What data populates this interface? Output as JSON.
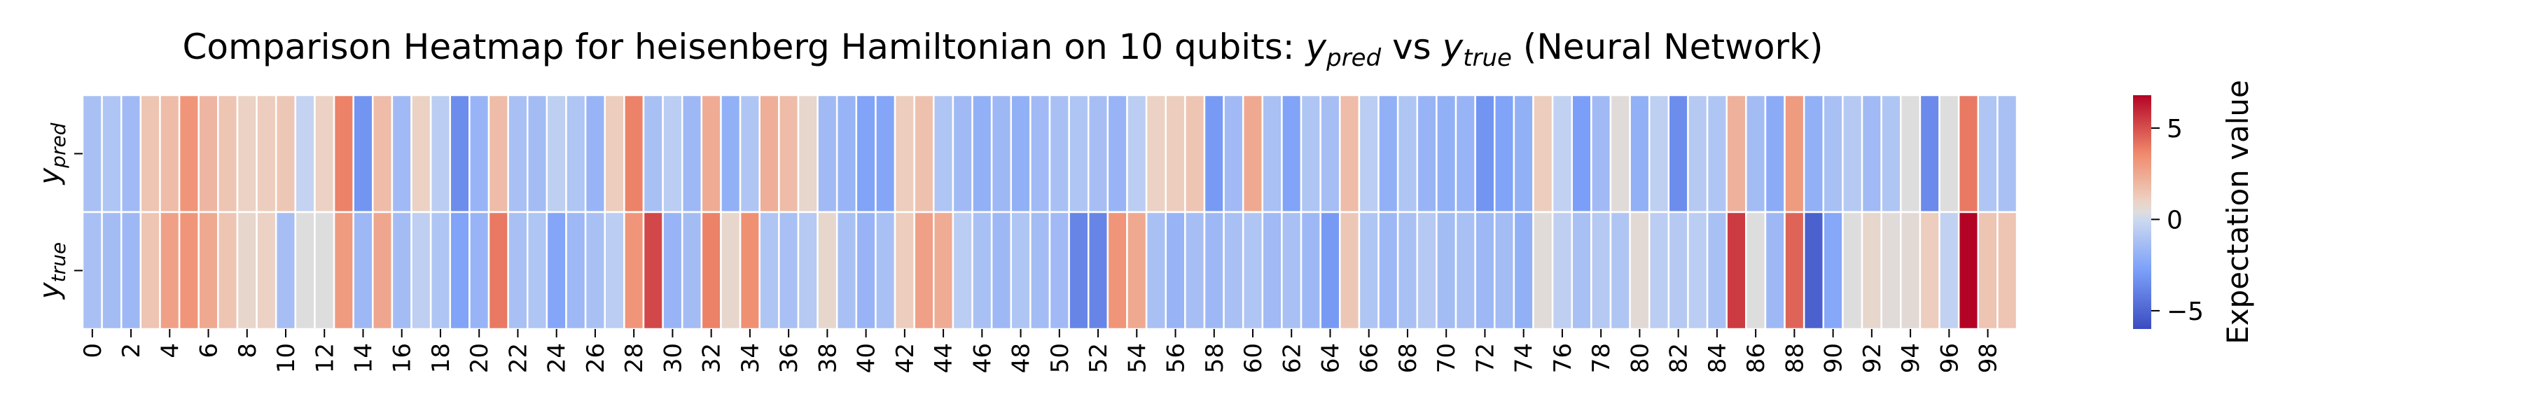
{
  "chart_data": {
    "type": "heatmap",
    "title": {
      "prefix": "Comparison Heatmap for heisenberg Hamiltonian on 10 qubits: ",
      "y_sym": "y",
      "pred_sub": "pred",
      "vs": " vs ",
      "true_sub": "true",
      "suffix": " (Neural Network)"
    },
    "rows": [
      {
        "base": "y",
        "sub": "pred"
      },
      {
        "base": "y",
        "sub": "true"
      }
    ],
    "x_tick_labels": [
      "0",
      "2",
      "4",
      "6",
      "8",
      "10",
      "12",
      "14",
      "16",
      "18",
      "20",
      "22",
      "24",
      "26",
      "28",
      "30",
      "32",
      "34",
      "36",
      "38",
      "40",
      "42",
      "44",
      "46",
      "48",
      "50",
      "52",
      "54",
      "56",
      "58",
      "60",
      "62",
      "64",
      "66",
      "68",
      "70",
      "72",
      "74",
      "76",
      "78",
      "80",
      "82",
      "84",
      "86",
      "88",
      "90",
      "92",
      "94",
      "96",
      "98"
    ],
    "columns": 100,
    "color_range": [
      -6,
      6.8
    ],
    "colormap": "coolwarm",
    "colorbar": {
      "label": "Expectation value",
      "ticks": [
        {
          "value": 5,
          "label": "5"
        },
        {
          "value": 0,
          "label": "0"
        },
        {
          "value": -5,
          "label": "−5"
        }
      ]
    },
    "values": [
      [
        -1.2,
        -1.0,
        -1.5,
        1.5,
        1.8,
        3.2,
        2.0,
        1.5,
        1.0,
        1.2,
        1.4,
        -0.3,
        1.0,
        3.8,
        -3.2,
        1.8,
        -1.5,
        1.0,
        -0.6,
        -3.5,
        -1.8,
        1.8,
        -1.2,
        -1.4,
        -0.5,
        -1.0,
        -1.8,
        1.2,
        3.8,
        -1.2,
        -0.6,
        -1.6,
        2.4,
        -2.0,
        -1.0,
        2.3,
        1.8,
        0.8,
        -1.5,
        -1.8,
        -2.6,
        -2.5,
        1.2,
        1.6,
        -1.0,
        -1.5,
        -2.0,
        -1.6,
        -2.0,
        -1.5,
        -1.2,
        -1.0,
        -1.3,
        -1.8,
        -0.6,
        1.0,
        1.2,
        1.5,
        -3.0,
        -1.5,
        2.5,
        -1.2,
        -2.6,
        -1.0,
        -1.3,
        1.8,
        -0.6,
        -2.0,
        -1.0,
        -1.8,
        -2.0,
        -1.8,
        -3.2,
        -2.6,
        -2.0,
        1.2,
        -0.4,
        -2.8,
        -1.5,
        0.5,
        -2.0,
        -0.5,
        -3.5,
        -0.8,
        -1.0,
        2.2,
        -1.4,
        -2.2,
        3.0,
        -2.0,
        -1.2,
        -0.8,
        -1.5,
        -1.0,
        0.4,
        -3.6,
        0.4,
        4.0,
        -1.0,
        -1.2
      ],
      [
        -1.2,
        -1.4,
        -1.6,
        1.5,
        2.8,
        3.2,
        2.5,
        1.5,
        0.8,
        1.0,
        -1.3,
        0.4,
        0.4,
        3.0,
        -1.6,
        2.6,
        -1.4,
        -0.5,
        -1.0,
        -2.6,
        -1.8,
        4.0,
        -1.2,
        -1.0,
        -2.5,
        -1.6,
        -1.2,
        -0.6,
        3.2,
        5.2,
        -1.8,
        -1.4,
        3.8,
        0.8,
        3.4,
        -1.0,
        -1.2,
        -0.8,
        0.8,
        -1.2,
        -1.8,
        -1.2,
        1.2,
        2.8,
        2.4,
        -0.6,
        -1.2,
        -1.6,
        -1.0,
        -1.4,
        -1.5,
        -3.8,
        -3.8,
        3.2,
        2.5,
        -1.2,
        -1.8,
        -1.3,
        -1.6,
        -1.2,
        -1.0,
        -1.5,
        -1.2,
        -1.6,
        -3.0,
        1.4,
        -1.0,
        -1.6,
        -1.2,
        -0.8,
        -1.4,
        -1.2,
        -1.6,
        -1.4,
        -2.0,
        0.5,
        -0.5,
        -1.2,
        -0.8,
        -1.0,
        0.6,
        -0.6,
        -0.8,
        -0.6,
        -1.2,
        5.5,
        0.4,
        -1.6,
        4.5,
        -5.2,
        -2.4,
        0.4,
        0.8,
        0.5,
        0.6,
        1.2,
        -0.4,
        6.8,
        1.5,
        1.5
      ]
    ]
  }
}
